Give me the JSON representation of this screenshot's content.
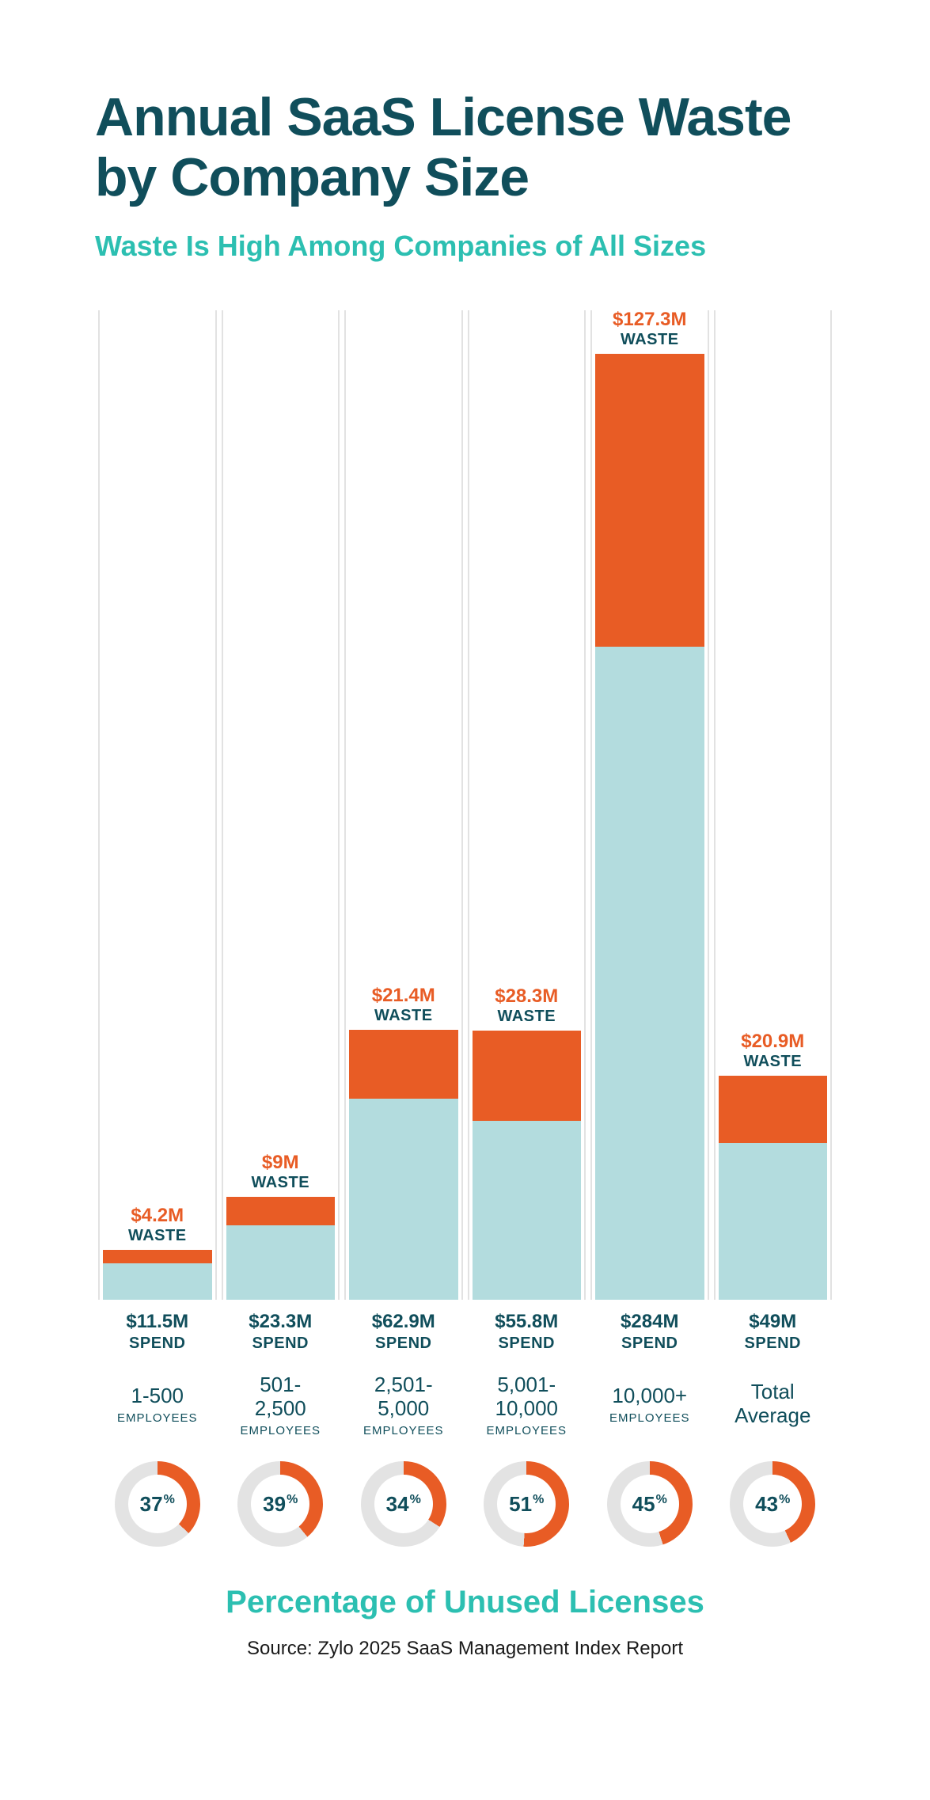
{
  "colors": {
    "title": "#104e5b",
    "accent": "#2cbfb1",
    "orange": "#e85c25",
    "spend": "#b3dcde",
    "rule": "#e2e2e2",
    "donutBg": "#e3e3e3",
    "text": "#104e5b",
    "sourceText": "#1a1a1a"
  },
  "layout": {
    "chartHeightPx": 1250,
    "pxPerM": 4.05,
    "donutSize": 108,
    "donutThickness": 17
  },
  "header": {
    "title": "Annual SaaS License Waste by Company Size",
    "subtitle": "Waste Is High Among Companies of All Sizes"
  },
  "labels": {
    "wasteWord": "WASTE",
    "spendWord": "SPEND",
    "employeesWord": "EMPLOYEES"
  },
  "chart": {
    "columns": [
      {
        "wasteLabel": "$4.2M",
        "waste": 4.2,
        "spendLabel": "$11.5M",
        "spend": 11.5,
        "catLine1": "1-500",
        "catLine2": "EMPLOYEES",
        "pct": 37,
        "pctLabel": "37"
      },
      {
        "wasteLabel": "$9M",
        "waste": 9.0,
        "spendLabel": "$23.3M",
        "spend": 23.3,
        "catLine1": "501-",
        "catLine2": "2,500",
        "catLine3": "EMPLOYEES",
        "pct": 39,
        "pctLabel": "39"
      },
      {
        "wasteLabel": "$21.4M",
        "waste": 21.4,
        "spendLabel": "$62.9M",
        "spend": 62.9,
        "catLine1": "2,501-",
        "catLine2": "5,000",
        "catLine3": "EMPLOYEES",
        "pct": 34,
        "pctLabel": "34"
      },
      {
        "wasteLabel": "$28.3M",
        "waste": 28.3,
        "spendLabel": "$55.8M",
        "spend": 55.8,
        "catLine1": "5,001-",
        "catLine2": "10,000",
        "catLine3": "EMPLOYEES",
        "pct": 51,
        "pctLabel": "51"
      },
      {
        "wasteLabel": "$127.3M",
        "waste": 127.3,
        "spendLabel": "$284M",
        "spend": 284.0,
        "catLine1": "10,000+",
        "catLine2": "EMPLOYEES",
        "pct": 45,
        "pctLabel": "45"
      },
      {
        "wasteLabel": "$20.9M",
        "waste": 20.9,
        "spendLabel": "$49M",
        "spend": 49.0,
        "catLine1": "Total",
        "catLine2": "Average",
        "pct": 43,
        "pctLabel": "43"
      }
    ]
  },
  "footer": {
    "title": "Percentage of Unused Licenses",
    "source": "Source: Zylo 2025 SaaS Management Index Report"
  }
}
